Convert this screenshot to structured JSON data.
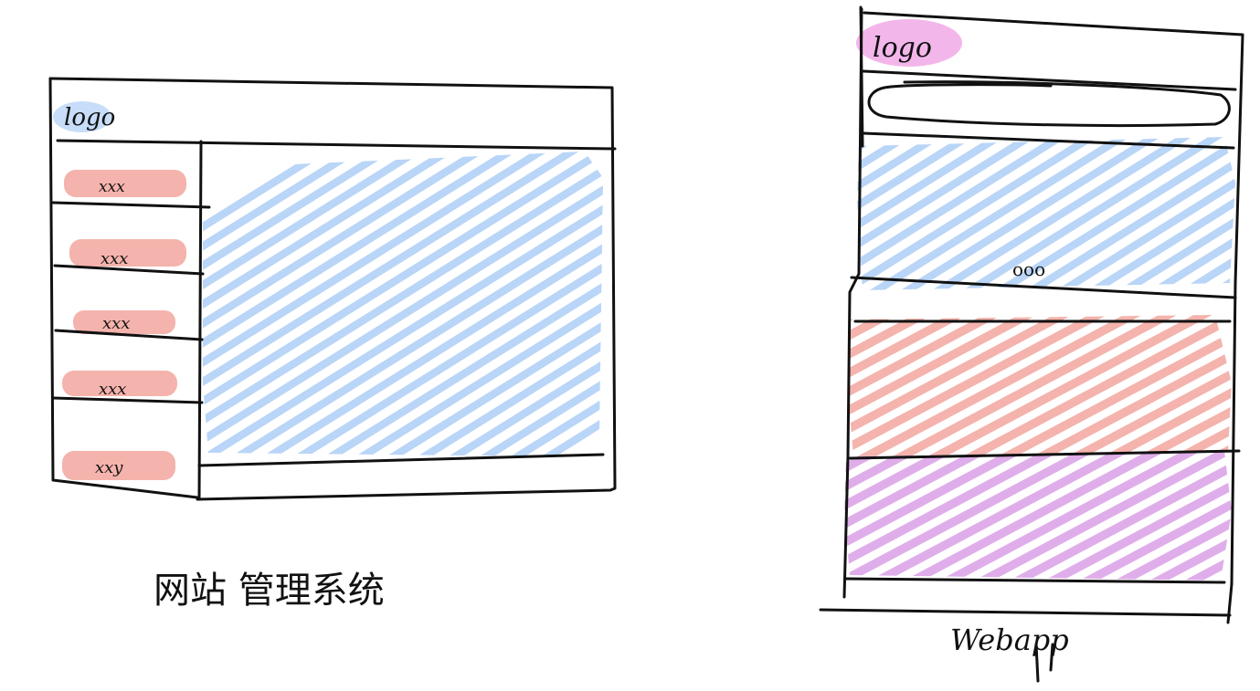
{
  "colors": {
    "ink": "#111111",
    "blue": "#b9d5f7",
    "red": "#f4b3ac",
    "pink": "#f1a9e6",
    "purple": "#dfaeea"
  },
  "admin_sketch": {
    "logo": "logo",
    "nav_items": [
      "xxx",
      "xxx",
      "xxx",
      "xxx",
      "xxy"
    ],
    "caption": "网站 管理系统"
  },
  "webapp_sketch": {
    "logo": "logo",
    "carousel_dots": "ooo",
    "caption": "Webapp"
  }
}
